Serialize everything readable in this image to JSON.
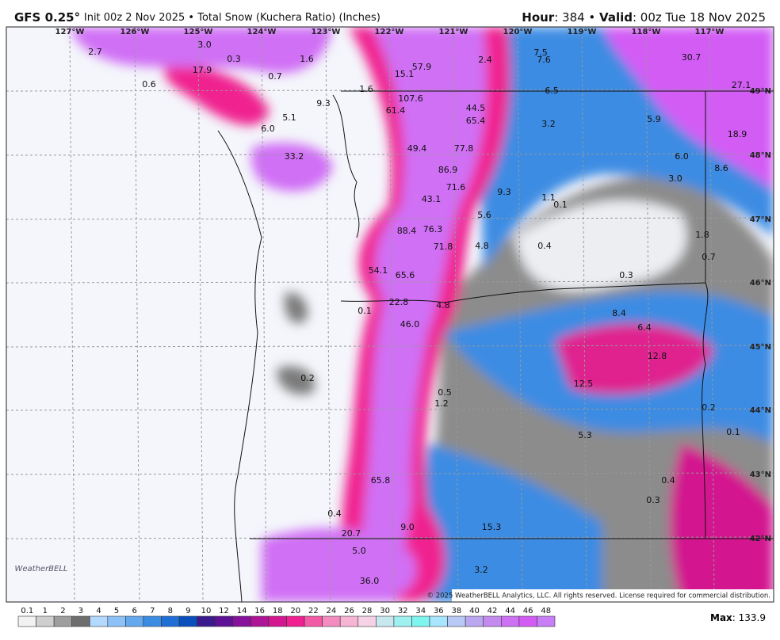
{
  "header": {
    "model": "GFS 0.25°",
    "info": "Init 00z 2 Nov 2025 • Total Snow (Kuchera Ratio) (Inches)",
    "hour_label": "Hour",
    "hour": ": 384 • ",
    "valid_label": "Valid",
    "valid": ": 00z Tue 18 Nov 2025"
  },
  "longitudes": [
    "127°W",
    "126°W",
    "125°W",
    "124°W",
    "123°W",
    "122°W",
    "121°W",
    "120°W",
    "119°W",
    "118°W",
    "117°W"
  ],
  "latitudes": [
    "49°N",
    "48°N",
    "47°N",
    "46°N",
    "45°N",
    "44°N",
    "43°N",
    "42°N"
  ],
  "map_labels": [
    "2.7",
    "3.0",
    "0.3",
    "1.6",
    "17.9",
    "0.7",
    "0.6",
    "9.3",
    "5.1",
    "6.0",
    "1.6",
    "15.1",
    "57.9",
    "2.4",
    "7.5",
    "7.6",
    "30.7",
    "27.1",
    "107.6",
    "61.4",
    "44.5",
    "65.4",
    "6.5",
    "3.2",
    "5.9",
    "18.9",
    "33.2",
    "49.4",
    "77.8",
    "6.0",
    "8.6",
    "86.9",
    "71.6",
    "3.0",
    "9.3",
    "43.1",
    "1.1",
    "0.1",
    "5.6",
    "88.4",
    "76.3",
    "1.8",
    "71.8",
    "4.8",
    "0.4",
    "0.7",
    "54.1",
    "65.6",
    "0.3",
    "22.8",
    "4.8",
    "0.1",
    "8.4",
    "46.0",
    "6.4",
    "12.8",
    "0.2",
    "12.5",
    "0.5",
    "1.2",
    "0.2",
    "0.1",
    "5.3",
    "0.4",
    "65.8",
    "0.3",
    "0.4",
    "9.0",
    "15.3",
    "20.7",
    "5.0",
    "3.2",
    "36.0"
  ],
  "copyright": "© 2025 WeatherBELL Analytics, LLC. All rights reserved. License required for commercial distribution.",
  "logo": "WeatherBELL",
  "colorbar": {
    "levels": [
      "0.1",
      "1",
      "2",
      "3",
      "4",
      "5",
      "6",
      "7",
      "8",
      "9",
      "10",
      "12",
      "14",
      "16",
      "18",
      "20",
      "22",
      "24",
      "26",
      "28",
      "30",
      "32",
      "34",
      "36",
      "38",
      "40",
      "42",
      "44",
      "46",
      "48"
    ],
    "colors": [
      "#f2f2f2",
      "#cfcfcf",
      "#9e9e9e",
      "#6e6e6e",
      "#b3d9ff",
      "#8cc2f7",
      "#64a8ee",
      "#3d8ce3",
      "#1f6fd6",
      "#0b4fbf",
      "#3a1a8c",
      "#5e1194",
      "#86119a",
      "#ad1496",
      "#d3178f",
      "#f02090",
      "#f25aa6",
      "#f58cc0",
      "#f7b5d6",
      "#f5d2e6",
      "#c8e8f0",
      "#9ff0f0",
      "#7ff5f0",
      "#a8e6ff",
      "#b9c9f5",
      "#bba7f0",
      "#c48af0",
      "#cc72f2",
      "#d35cf5",
      "#c77ef7"
    ]
  },
  "max_label": "Max",
  "max_value": ": 133.9"
}
